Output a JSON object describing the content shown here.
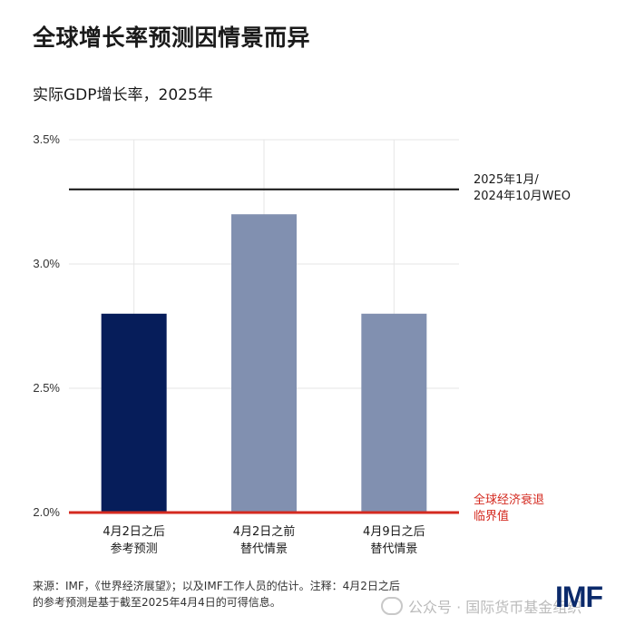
{
  "header": {
    "title": "全球增长率预测因情景而异",
    "subtitle": "实际GDP增长率，2025年"
  },
  "annotations": {
    "weo_line1": "2025年1月/",
    "weo_line2": "2024年10月WEO",
    "recession_line1": "全球经济衰退",
    "recession_line2": "临界值"
  },
  "footnote": {
    "line1": "来源：IMF，《世界经济展望》；以及IMF工作人员的估计。注释：4月2日之后",
    "line2": "的参考预测是基于截至2025年4月4日的可得信息。"
  },
  "watermark": {
    "text": "公众号 · 国际货币基金组织",
    "icon": "wechat-icon"
  },
  "logo": {
    "text": "IMF"
  },
  "colors": {
    "dark_bar": "#061d5a",
    "light_bar": "#8190b0",
    "reference_line": "#111111",
    "threshold_line": "#d42a20",
    "grid": "#e6e6e6"
  },
  "chart_data": {
    "type": "bar",
    "title": "全球增长率预测因情景而异",
    "subtitle": "实际GDP增长率，2025年",
    "categories": [
      [
        "4月2日之后",
        "参考预测"
      ],
      [
        "4月2日之前",
        "替代情景"
      ],
      [
        "4月9日之后",
        "替代情景"
      ]
    ],
    "values": [
      2.8,
      3.2,
      2.8
    ],
    "bar_colors": [
      "#061d5a",
      "#8190b0",
      "#8190b0"
    ],
    "ylim": [
      2.0,
      3.5
    ],
    "yticks": [
      2.0,
      2.5,
      3.0,
      3.5
    ],
    "ytick_labels": [
      "2.0%",
      "2.5%",
      "3.0%",
      "3.5%"
    ],
    "reference_lines": [
      {
        "value": 3.3,
        "label": [
          "2025年1月/",
          "2024年10月WEO"
        ],
        "color": "#111111"
      },
      {
        "value": 2.0,
        "label": [
          "全球经济衰退",
          "临界值"
        ],
        "color": "#d42a20"
      }
    ],
    "grid": true,
    "xlabel": "",
    "ylabel": ""
  }
}
